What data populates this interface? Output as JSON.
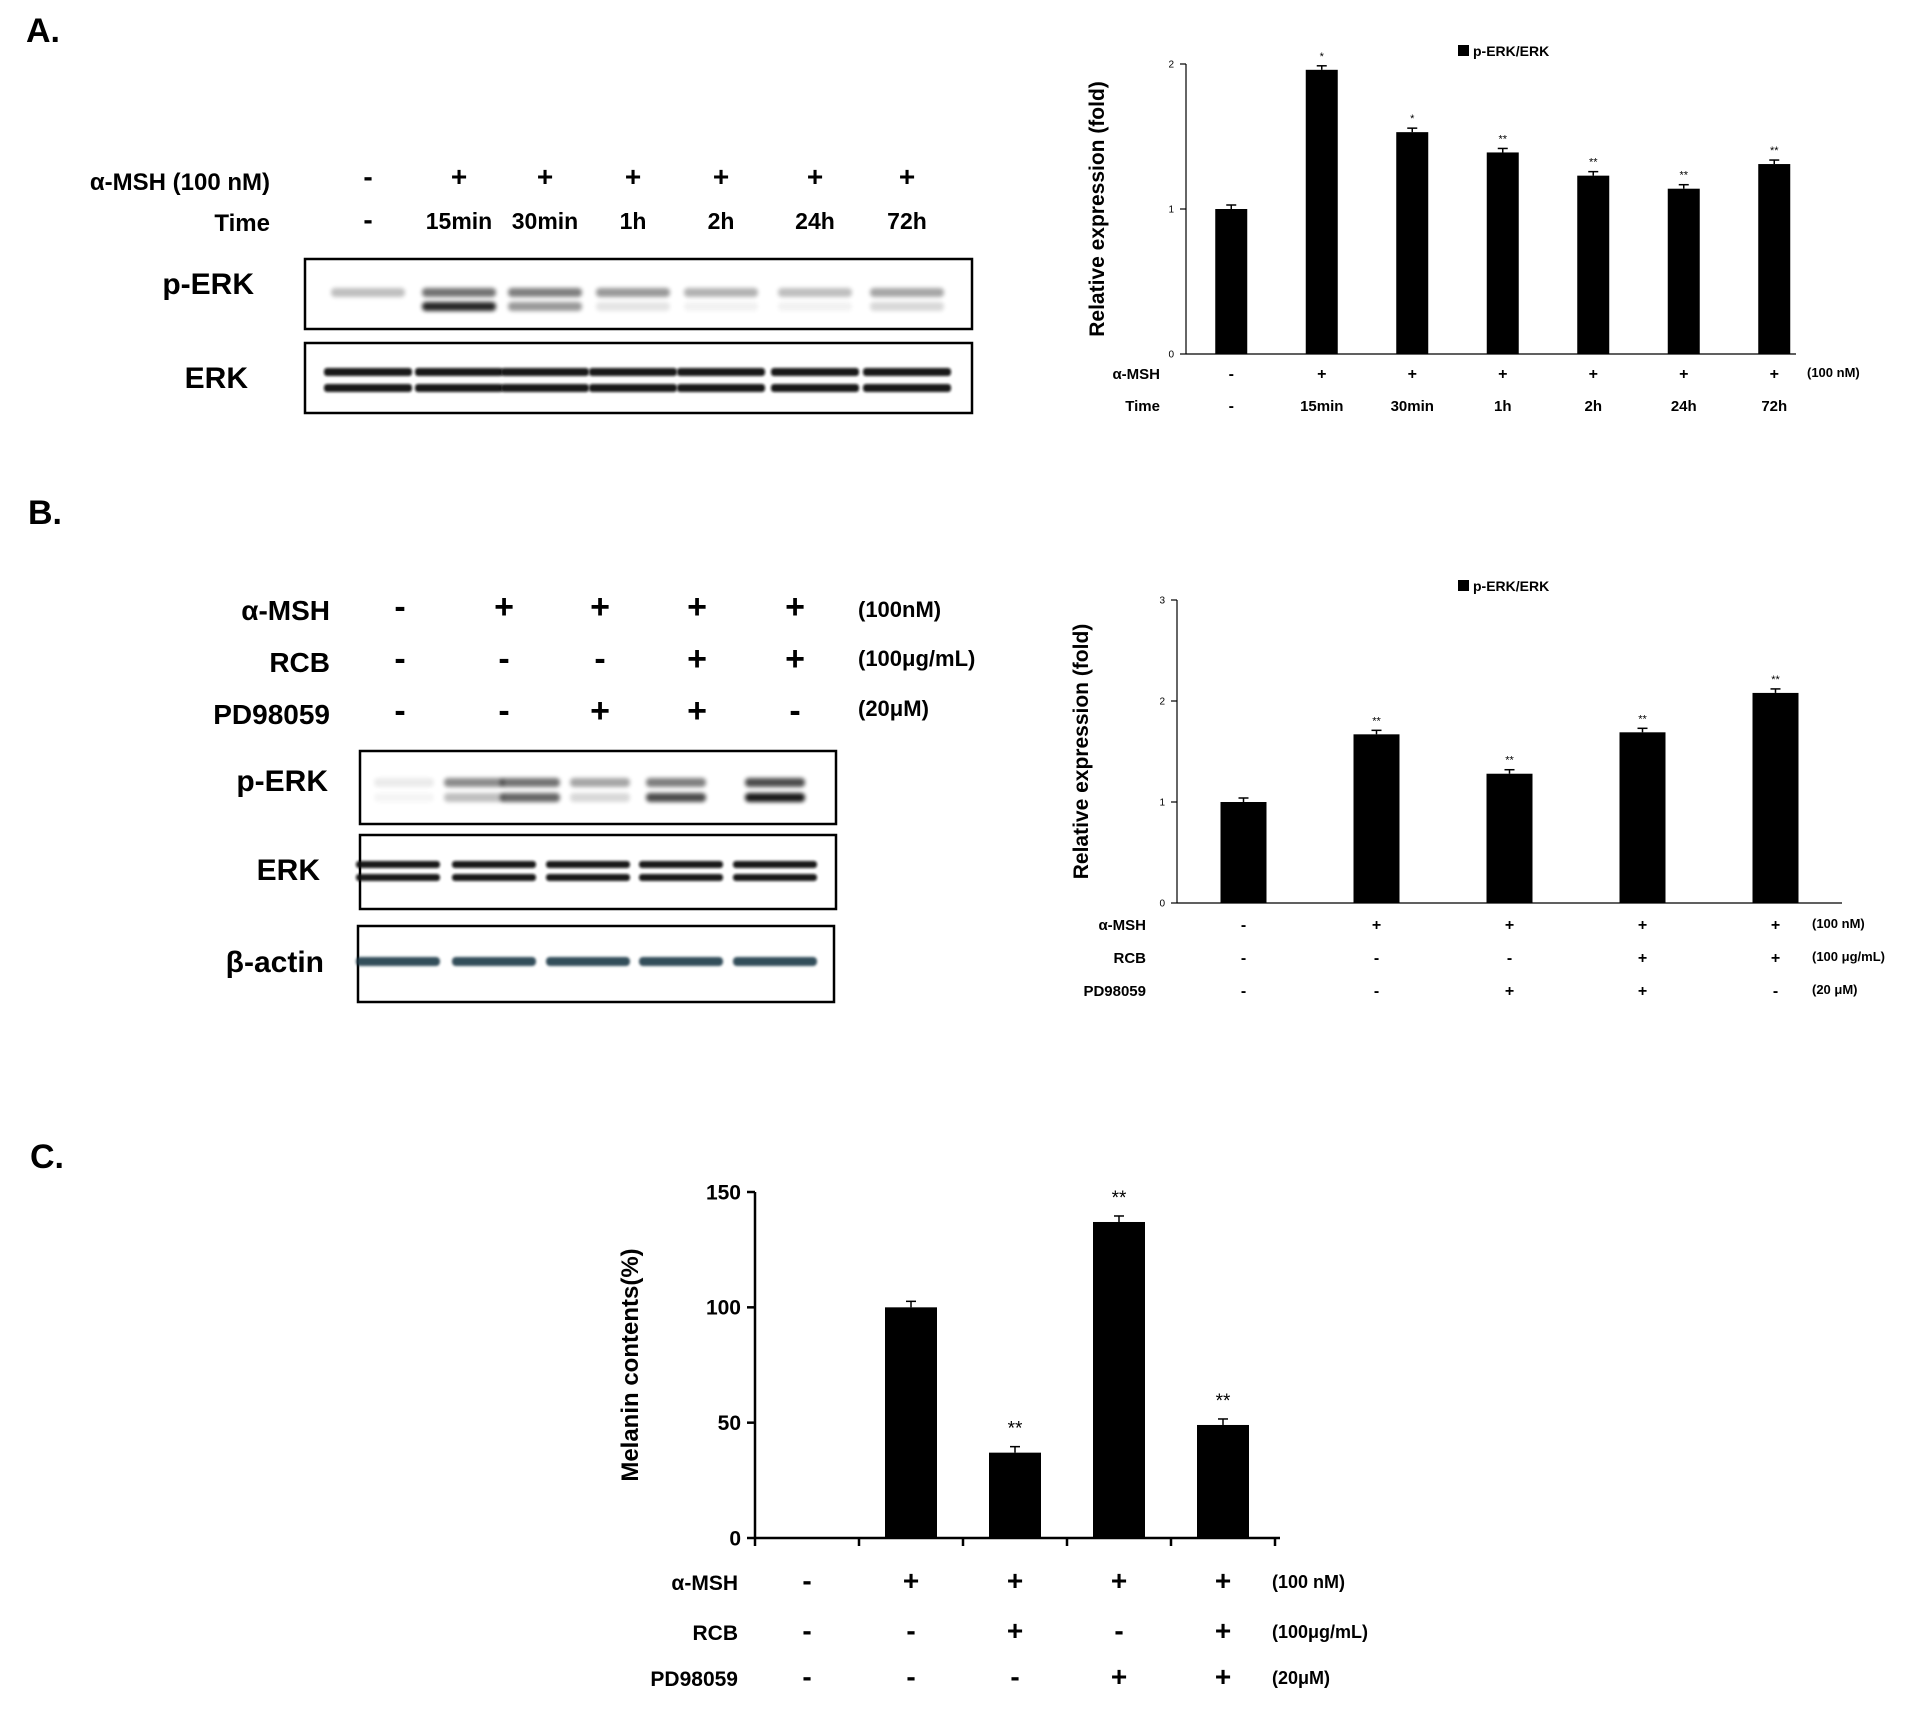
{
  "panels": {
    "A": {
      "label": "A.",
      "blot": {
        "rows": [
          {
            "name": "α-MSH (100 nM)",
            "values": [
              "-",
              "+",
              "+",
              "+",
              "+",
              "+",
              "+"
            ]
          },
          {
            "name": "Time",
            "values": [
              "-",
              "15min",
              "30min",
              "1h",
              "2h",
              "24h",
              "72h"
            ]
          }
        ],
        "bands": [
          "p-ERK",
          "ERK"
        ]
      }
    },
    "B": {
      "label": "B.",
      "blot": {
        "rows": [
          {
            "name": "α-MSH",
            "values": [
              "-",
              "+",
              "+",
              "+",
              "+"
            ],
            "unit": "(100nM)"
          },
          {
            "name": "RCB",
            "values": [
              "-",
              "-",
              "-",
              "+",
              "+"
            ],
            "unit": "(100μg/mL)"
          },
          {
            "name": "PD98059",
            "values": [
              "-",
              "-",
              "+",
              "+",
              "-"
            ],
            "unit": "(20μM)"
          }
        ],
        "bands": [
          "p-ERK",
          "ERK",
          "β-actin"
        ]
      }
    },
    "C": {
      "label": "C."
    }
  },
  "chart_data": [
    {
      "panel": "A",
      "type": "bar",
      "legend": "p-ERK/ERK",
      "ylabel": "Relative expression (fold)",
      "ylim": [
        0,
        2
      ],
      "yticks": [
        "0",
        "1",
        "2"
      ],
      "values": [
        1.0,
        1.96,
        1.53,
        1.39,
        1.23,
        1.14,
        1.31
      ],
      "significance": [
        "",
        "*",
        "*",
        "**",
        "**",
        "**",
        "**"
      ],
      "color": "#000000",
      "conditions": [
        {
          "name": "α-MSH",
          "values": [
            "-",
            "+",
            "+",
            "+",
            "+",
            "+",
            "+"
          ],
          "unit": "(100 nM)"
        },
        {
          "name": "Time",
          "values": [
            "-",
            "15min",
            "30min",
            "1h",
            "2h",
            "24h",
            "72h"
          ],
          "unit": ""
        }
      ]
    },
    {
      "panel": "B",
      "type": "bar",
      "legend": "p-ERK/ERK",
      "ylabel": "Relative expression (fold)",
      "ylim": [
        0,
        3
      ],
      "yticks": [
        "0",
        "1",
        "2",
        "3"
      ],
      "values": [
        1.0,
        1.67,
        1.28,
        1.69,
        2.08
      ],
      "significance": [
        "",
        "**",
        "**",
        "**",
        "**"
      ],
      "color": "#000000",
      "conditions": [
        {
          "name": "α-MSH",
          "values": [
            "-",
            "+",
            "+",
            "+",
            "+"
          ],
          "unit": "(100 nM)"
        },
        {
          "name": "RCB",
          "values": [
            "-",
            "-",
            "-",
            "+",
            "+"
          ],
          "unit": "(100 μg/mL)"
        },
        {
          "name": "PD98059",
          "values": [
            "-",
            "-",
            "+",
            "+",
            "-"
          ],
          "unit": "(20 μM)"
        }
      ]
    },
    {
      "panel": "C",
      "type": "bar",
      "ylabel": "Melanin contents(%)",
      "ylim": [
        0,
        150
      ],
      "yticks": [
        "0",
        "50",
        "100",
        "150"
      ],
      "values": [
        0,
        100,
        37,
        137,
        49
      ],
      "significance": [
        "",
        "",
        "**",
        "**",
        "**"
      ],
      "color": "#000000",
      "conditions": [
        {
          "name": "α-MSH",
          "values": [
            "-",
            "+",
            "+",
            "+",
            "+"
          ],
          "unit": "(100 nM)"
        },
        {
          "name": "RCB",
          "values": [
            "-",
            "-",
            "+",
            "-",
            "+"
          ],
          "unit": "(100μg/mL)"
        },
        {
          "name": "PD98059",
          "values": [
            "-",
            "-",
            "-",
            "+",
            "+"
          ],
          "unit": "(20μM)"
        }
      ]
    }
  ]
}
